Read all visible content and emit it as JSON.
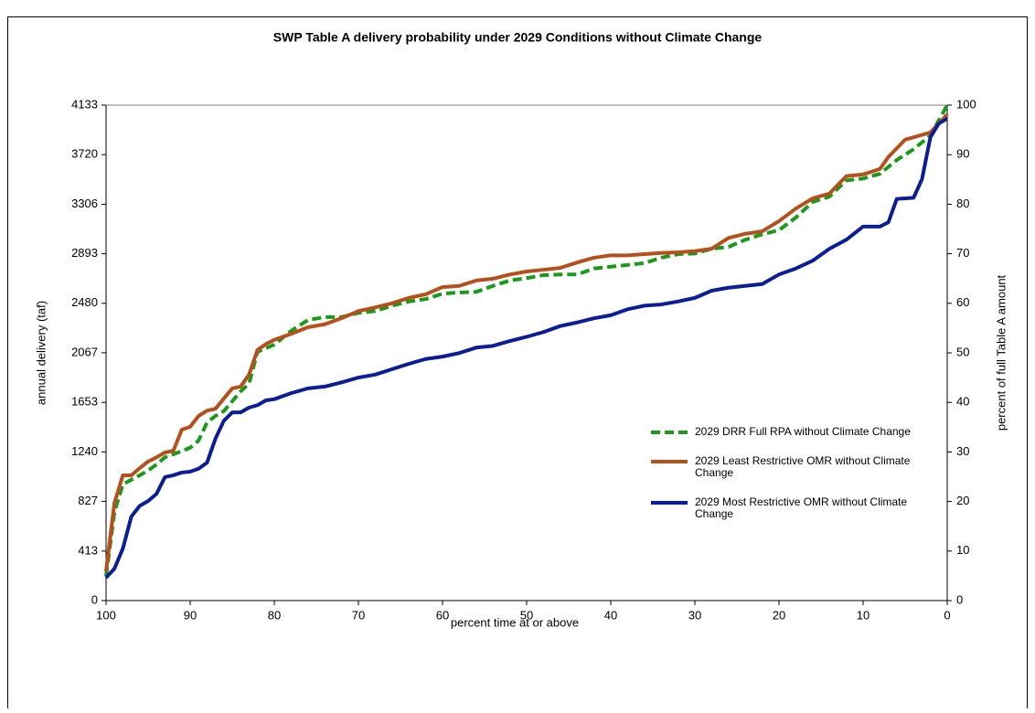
{
  "chart_data": {
    "type": "line",
    "title": "SWP Table A delivery probability under 2029 Conditions without Climate Change",
    "x_label": "percent time at or above",
    "y_label": "annual delivery (taf)",
    "y2_label": "percent of full Table A amount",
    "xlim": [
      100,
      0
    ],
    "xticks": [
      100,
      90,
      80,
      70,
      60,
      50,
      40,
      30,
      20,
      10,
      0
    ],
    "ylim": [
      0,
      4133
    ],
    "yticks": [
      0,
      413,
      827,
      1240,
      1653,
      2067,
      2480,
      2893,
      3306,
      3720,
      4133
    ],
    "y2lim": [
      0,
      100
    ],
    "y2ticks": [
      0,
      10,
      20,
      30,
      40,
      50,
      60,
      70,
      80,
      90,
      100
    ],
    "grid": false,
    "legend": "lower right",
    "series": [
      {
        "name": "2029 DRR Full RPA without Climate Change",
        "color": "#1a9a1a",
        "dash": true,
        "x": [
          100,
          99,
          98,
          96,
          95,
          94,
          93,
          92,
          90,
          89,
          88,
          87,
          86,
          84,
          83,
          82,
          80,
          78,
          76,
          74,
          72,
          70,
          68,
          66,
          64,
          62,
          60,
          58,
          56,
          54,
          52,
          50,
          48,
          46,
          44,
          42,
          40,
          38,
          36,
          34,
          32,
          30,
          28,
          26,
          24,
          22,
          20,
          18,
          16,
          14,
          12,
          10,
          8,
          6,
          4,
          2,
          0
        ],
        "values": [
          205,
          740,
          970,
          1045,
          1085,
          1135,
          1195,
          1220,
          1275,
          1335,
          1485,
          1540,
          1580,
          1745,
          1810,
          2075,
          2135,
          2250,
          2340,
          2365,
          2365,
          2400,
          2415,
          2460,
          2495,
          2515,
          2560,
          2570,
          2575,
          2625,
          2670,
          2690,
          2715,
          2720,
          2720,
          2770,
          2785,
          2800,
          2815,
          2860,
          2890,
          2895,
          2935,
          2950,
          3010,
          3055,
          3090,
          3195,
          3325,
          3370,
          3505,
          3520,
          3560,
          3675,
          3765,
          3880,
          4133
        ]
      },
      {
        "name": "2029 Least Restrictive OMR without Climate Change",
        "color": "#b5501c",
        "dash": false,
        "x": [
          100,
          99,
          98,
          97,
          96,
          95,
          94,
          93,
          92,
          91,
          90,
          89,
          88,
          87,
          85,
          84,
          83,
          82,
          81,
          80,
          78,
          76,
          74,
          72,
          70,
          68,
          66,
          64,
          62,
          60,
          58,
          56,
          54,
          52,
          50,
          48,
          46,
          44,
          42,
          40,
          38,
          36,
          34,
          32,
          30,
          28,
          26,
          24,
          22,
          20,
          18,
          16,
          14,
          12,
          10,
          8,
          7,
          5,
          4,
          2,
          0
        ],
        "values": [
          245,
          815,
          1045,
          1045,
          1105,
          1160,
          1195,
          1235,
          1250,
          1425,
          1450,
          1540,
          1585,
          1600,
          1770,
          1785,
          1885,
          2090,
          2140,
          2175,
          2225,
          2280,
          2305,
          2355,
          2415,
          2445,
          2480,
          2525,
          2555,
          2615,
          2625,
          2670,
          2685,
          2720,
          2745,
          2760,
          2775,
          2820,
          2860,
          2880,
          2880,
          2890,
          2900,
          2905,
          2915,
          2935,
          3025,
          3060,
          3080,
          3165,
          3270,
          3355,
          3395,
          3540,
          3555,
          3600,
          3700,
          3845,
          3865,
          3905,
          4055
        ]
      },
      {
        "name": "2029 Most Restrictive OMR without Climate Change",
        "color": "#0c1e96",
        "dash": false,
        "x": [
          100,
          99,
          98,
          97,
          96,
          95,
          94,
          93,
          92,
          91,
          90,
          89,
          88,
          87,
          86,
          85,
          84,
          83,
          82,
          81,
          80,
          78,
          76,
          74,
          72,
          70,
          68,
          66,
          64,
          62,
          60,
          58,
          56,
          54,
          52,
          50,
          48,
          46,
          44,
          42,
          40,
          38,
          36,
          34,
          32,
          30,
          28,
          26,
          24,
          22,
          20,
          18,
          16,
          14,
          12,
          10,
          8,
          7,
          6,
          4,
          3,
          2,
          1,
          0
        ],
        "values": [
          190,
          267,
          435,
          700,
          790,
          830,
          890,
          1030,
          1045,
          1068,
          1075,
          1100,
          1150,
          1350,
          1500,
          1570,
          1570,
          1610,
          1630,
          1670,
          1680,
          1730,
          1770,
          1785,
          1820,
          1860,
          1885,
          1930,
          1975,
          2015,
          2035,
          2065,
          2110,
          2125,
          2165,
          2200,
          2240,
          2290,
          2320,
          2355,
          2380,
          2430,
          2460,
          2470,
          2495,
          2525,
          2585,
          2610,
          2625,
          2640,
          2720,
          2770,
          2835,
          2935,
          3010,
          3120,
          3120,
          3155,
          3350,
          3360,
          3515,
          3865,
          3980,
          4020
        ]
      }
    ]
  }
}
